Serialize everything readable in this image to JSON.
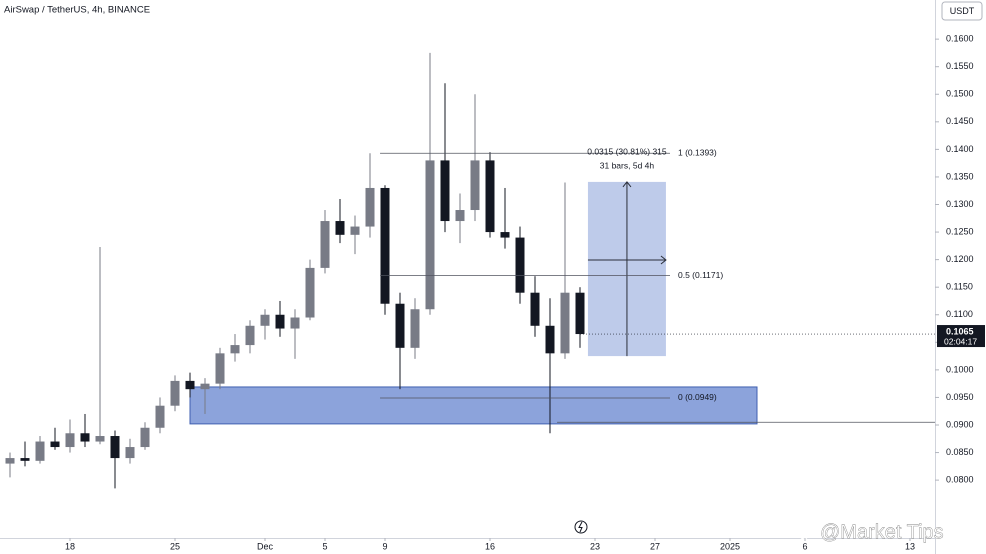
{
  "chart_data": {
    "type": "candlestick",
    "title": "AirSwap / TetherUS, 4h, BINANCE",
    "currency": "USDT",
    "watermark": "@Market Tips",
    "up_color": "#787b86",
    "down_color": "#131722",
    "x": [
      -4,
      -3,
      -2,
      -1,
      0,
      1,
      2,
      3,
      4,
      5,
      6,
      7,
      8,
      9,
      10,
      11,
      12,
      13,
      14,
      15,
      16,
      17,
      18,
      19,
      20,
      21,
      22,
      23,
      24,
      25,
      26,
      27,
      28,
      29,
      30,
      31,
      32,
      33,
      34
    ],
    "open": [
      0.083,
      0.084,
      0.0835,
      0.087,
      0.086,
      0.0885,
      0.087,
      0.088,
      0.084,
      0.086,
      0.0895,
      0.0935,
      0.098,
      0.0965,
      0.0975,
      0.103,
      0.1045,
      0.108,
      0.11,
      0.1075,
      0.1095,
      0.1185,
      0.127,
      0.1245,
      0.126,
      0.133,
      0.112,
      0.104,
      0.111,
      0.138,
      0.127,
      0.129,
      0.138,
      0.125,
      0.124,
      0.114,
      0.108,
      0.103,
      0.114
    ],
    "high": [
      0.085,
      0.087,
      0.088,
      0.0895,
      0.091,
      0.092,
      0.1223,
      0.089,
      0.0875,
      0.0905,
      0.095,
      0.099,
      0.0995,
      0.0985,
      0.104,
      0.1065,
      0.109,
      0.111,
      0.1125,
      0.111,
      0.12,
      0.129,
      0.131,
      0.128,
      0.1393,
      0.1335,
      0.114,
      0.113,
      0.1575,
      0.152,
      0.132,
      0.15,
      0.1395,
      0.133,
      0.126,
      0.117,
      0.113,
      0.134,
      0.115
    ],
    "low": [
      0.0805,
      0.0825,
      0.083,
      0.0855,
      0.085,
      0.086,
      0.0865,
      0.0785,
      0.083,
      0.0855,
      0.0885,
      0.0925,
      0.095,
      0.092,
      0.0965,
      0.1015,
      0.103,
      0.1055,
      0.106,
      0.102,
      0.109,
      0.1175,
      0.123,
      0.121,
      0.124,
      0.11,
      0.0965,
      0.102,
      0.11,
      0.125,
      0.123,
      0.127,
      0.124,
      0.122,
      0.112,
      0.106,
      0.0885,
      0.102,
      0.104
    ],
    "close": [
      0.084,
      0.0835,
      0.087,
      0.086,
      0.0885,
      0.087,
      0.088,
      0.084,
      0.086,
      0.0895,
      0.0935,
      0.098,
      0.0965,
      0.0975,
      0.103,
      0.1045,
      0.108,
      0.11,
      0.1075,
      0.1095,
      0.1185,
      0.127,
      0.1245,
      0.126,
      0.133,
      0.112,
      0.104,
      0.111,
      0.138,
      0.127,
      0.129,
      0.138,
      0.125,
      0.124,
      0.114,
      0.108,
      0.103,
      0.114,
      0.1065
    ],
    "xlim": [
      -4.667,
      57.667
    ],
    "ylim": [
      0.0695,
      0.1671
    ],
    "xticks": [
      {
        "value": 0,
        "label": "18"
      },
      {
        "value": 7,
        "label": "25"
      },
      {
        "value": 13,
        "label": "Dec"
      },
      {
        "value": 17,
        "label": "5"
      },
      {
        "value": 21,
        "label": "9"
      },
      {
        "value": 28,
        "label": "16"
      },
      {
        "value": 35,
        "label": "23"
      },
      {
        "value": 39,
        "label": "27"
      },
      {
        "value": 44,
        "label": "2025"
      },
      {
        "value": 49,
        "label": "6"
      },
      {
        "value": 56,
        "label": "13"
      }
    ],
    "yticks": [
      {
        "value": 0.08,
        "label": "0.0800"
      },
      {
        "value": 0.085,
        "label": "0.0850"
      },
      {
        "value": 0.09,
        "label": "0.0900"
      },
      {
        "value": 0.095,
        "label": "0.0950"
      },
      {
        "value": 0.1,
        "label": "0.1000"
      },
      {
        "value": 0.105,
        "label": "0.1050"
      },
      {
        "value": 0.11,
        "label": "0.1100"
      },
      {
        "value": 0.115,
        "label": "0.1150"
      },
      {
        "value": 0.12,
        "label": "0.1200"
      },
      {
        "value": 0.125,
        "label": "0.1250"
      },
      {
        "value": 0.13,
        "label": "0.1300"
      },
      {
        "value": 0.135,
        "label": "0.1350"
      },
      {
        "value": 0.14,
        "label": "0.1400"
      },
      {
        "value": 0.145,
        "label": "0.1450"
      },
      {
        "value": 0.15,
        "label": "0.1500"
      },
      {
        "value": 0.155,
        "label": "0.1550"
      },
      {
        "value": 0.16,
        "label": "0.1600"
      }
    ],
    "last_price": 0.1065,
    "countdown": "02:04:17",
    "zone": {
      "top": 0.0969,
      "bottom": 0.0902,
      "x": [
        8,
        45.8
      ],
      "color": "#5b7ccc"
    },
    "support_line": {
      "value": 0.0905,
      "x": 32.47
    },
    "fib": {
      "x": [
        20.67,
        40
      ],
      "levels": [
        {
          "value": 0.1393,
          "label": "1 (0.1393)"
        },
        {
          "value": 0.1171,
          "label": "0.5 (0.1171)"
        },
        {
          "value": 0.0949,
          "label": "0 (0.0949)"
        }
      ]
    },
    "measure": {
      "top": 0.1341,
      "bottom": 0.1025,
      "x": [
        34.53,
        39.73
      ],
      "color": "#b3c2e6",
      "label": "0.0315 (30.81%) 315",
      "sublabel": "31 bars, 5d 4h"
    }
  }
}
